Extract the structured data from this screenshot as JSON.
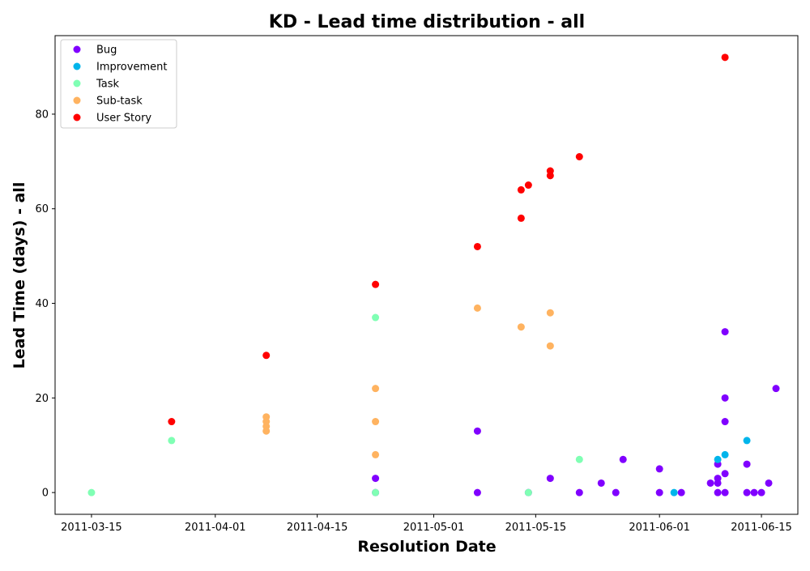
{
  "chart_data": {
    "type": "scatter",
    "title": "KD - Lead time distribution - all",
    "xlabel": "Resolution Date",
    "ylabel": "Lead Time (days) - all",
    "x_axis": {
      "type": "date",
      "range": [
        "2011-03-10",
        "2011-06-20"
      ],
      "ticks": [
        "2011-03-15",
        "2011-04-01",
        "2011-04-15",
        "2011-05-01",
        "2011-05-15",
        "2011-06-01",
        "2011-06-15"
      ]
    },
    "y_axis": {
      "range": [
        -4.6,
        96.6
      ],
      "ticks": [
        0,
        20,
        40,
        60,
        80
      ]
    },
    "grid": false,
    "legend_position": "top-left",
    "series": [
      {
        "name": "Bug",
        "color": "#8000ff",
        "points": [
          {
            "x": "2011-04-23",
            "y": 3
          },
          {
            "x": "2011-04-23",
            "y": 0
          },
          {
            "x": "2011-05-07",
            "y": 13
          },
          {
            "x": "2011-05-07",
            "y": 0
          },
          {
            "x": "2011-05-14",
            "y": 0
          },
          {
            "x": "2011-05-17",
            "y": 3
          },
          {
            "x": "2011-05-21",
            "y": 0
          },
          {
            "x": "2011-05-24",
            "y": 2
          },
          {
            "x": "2011-05-26",
            "y": 0
          },
          {
            "x": "2011-05-27",
            "y": 7
          },
          {
            "x": "2011-06-01",
            "y": 5
          },
          {
            "x": "2011-06-01",
            "y": 0
          },
          {
            "x": "2011-06-04",
            "y": 0
          },
          {
            "x": "2011-06-08",
            "y": 2
          },
          {
            "x": "2011-06-09",
            "y": 6
          },
          {
            "x": "2011-06-09",
            "y": 3
          },
          {
            "x": "2011-06-09",
            "y": 2
          },
          {
            "x": "2011-06-09",
            "y": 0
          },
          {
            "x": "2011-06-10",
            "y": 34
          },
          {
            "x": "2011-06-10",
            "y": 20
          },
          {
            "x": "2011-06-10",
            "y": 15
          },
          {
            "x": "2011-06-10",
            "y": 4
          },
          {
            "x": "2011-06-10",
            "y": 0
          },
          {
            "x": "2011-06-13",
            "y": 6
          },
          {
            "x": "2011-06-13",
            "y": 0
          },
          {
            "x": "2011-06-14",
            "y": 0
          },
          {
            "x": "2011-06-15",
            "y": 0
          },
          {
            "x": "2011-06-16",
            "y": 2
          },
          {
            "x": "2011-06-17",
            "y": 22
          }
        ]
      },
      {
        "name": "Improvement",
        "color": "#00b5eb",
        "points": [
          {
            "x": "2011-06-03",
            "y": 0
          },
          {
            "x": "2011-06-09",
            "y": 7
          },
          {
            "x": "2011-06-10",
            "y": 8
          },
          {
            "x": "2011-06-13",
            "y": 11
          }
        ]
      },
      {
        "name": "Task",
        "color": "#80ffb4",
        "points": [
          {
            "x": "2011-03-15",
            "y": 0
          },
          {
            "x": "2011-03-26",
            "y": 11
          },
          {
            "x": "2011-04-23",
            "y": 37
          },
          {
            "x": "2011-04-23",
            "y": 0
          },
          {
            "x": "2011-05-14",
            "y": 0
          },
          {
            "x": "2011-05-21",
            "y": 7
          }
        ]
      },
      {
        "name": "Sub-task",
        "color": "#ffb360",
        "points": [
          {
            "x": "2011-04-08",
            "y": 16
          },
          {
            "x": "2011-04-08",
            "y": 15
          },
          {
            "x": "2011-04-08",
            "y": 14
          },
          {
            "x": "2011-04-08",
            "y": 13
          },
          {
            "x": "2011-04-23",
            "y": 22
          },
          {
            "x": "2011-04-23",
            "y": 15
          },
          {
            "x": "2011-04-23",
            "y": 8
          },
          {
            "x": "2011-05-07",
            "y": 39
          },
          {
            "x": "2011-05-13",
            "y": 35
          },
          {
            "x": "2011-05-17",
            "y": 38
          },
          {
            "x": "2011-05-17",
            "y": 31
          }
        ]
      },
      {
        "name": "User Story",
        "color": "#ff0000",
        "points": [
          {
            "x": "2011-03-26",
            "y": 15
          },
          {
            "x": "2011-04-08",
            "y": 29
          },
          {
            "x": "2011-04-23",
            "y": 44
          },
          {
            "x": "2011-05-07",
            "y": 52
          },
          {
            "x": "2011-05-13",
            "y": 64
          },
          {
            "x": "2011-05-13",
            "y": 58
          },
          {
            "x": "2011-05-14",
            "y": 65
          },
          {
            "x": "2011-05-17",
            "y": 68
          },
          {
            "x": "2011-05-17",
            "y": 67
          },
          {
            "x": "2011-05-21",
            "y": 71
          },
          {
            "x": "2011-06-10",
            "y": 92
          }
        ]
      }
    ]
  }
}
